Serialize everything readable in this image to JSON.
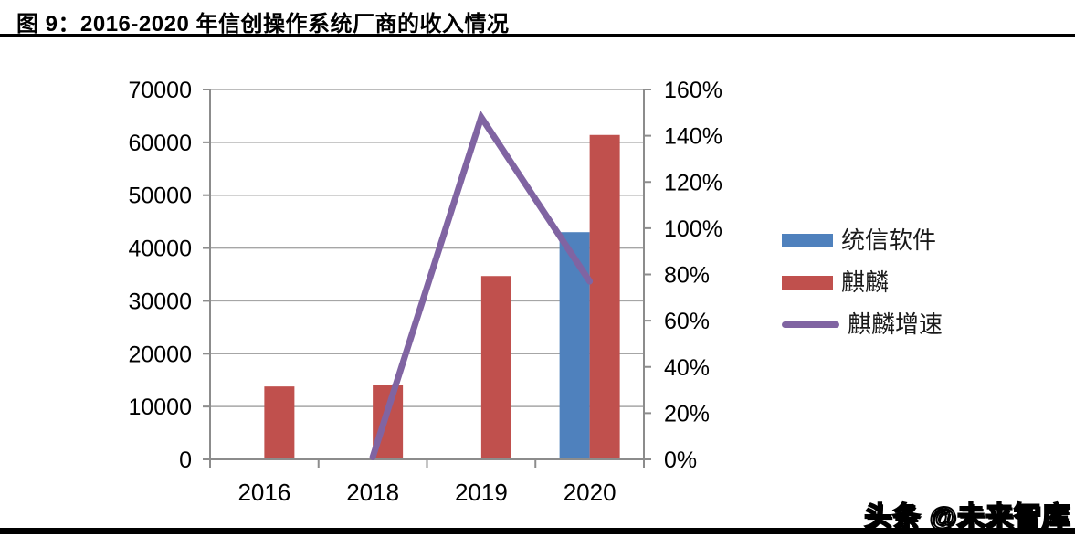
{
  "title": "图 9：2016-2020 年信创操作系统厂商的收入情况",
  "watermark": "头条 @未来智库",
  "colors": {
    "uos_blue": "#4F81BD",
    "kylin_red": "#C0504D",
    "growth_purple": "#8064A2",
    "gridline": "#A6A6A6",
    "axis": "#8C8C8C",
    "text": "#000000"
  },
  "legend": {
    "items": [
      {
        "label": "统信软件",
        "type": "bar",
        "color": "#4F81BD"
      },
      {
        "label": "麒麟",
        "type": "bar",
        "color": "#C0504D"
      },
      {
        "label": "麒麟增速",
        "type": "line",
        "color": "#8064A2"
      }
    ]
  },
  "chart_data": {
    "type": "bar",
    "title": "图 9：2016-2020 年信创操作系统厂商的收入情况",
    "categories": [
      "2016",
      "2018",
      "2019",
      "2020"
    ],
    "series": [
      {
        "name": "统信软件",
        "type": "bar",
        "axis": "left",
        "color": "#4F81BD",
        "values": [
          null,
          null,
          null,
          43000
        ]
      },
      {
        "name": "麒麟",
        "type": "bar",
        "axis": "left",
        "color": "#C0504D",
        "values": [
          13800,
          14000,
          34700,
          61400
        ]
      },
      {
        "name": "麒麟增速",
        "type": "line",
        "axis": "right",
        "color": "#8064A2",
        "values": [
          null,
          1,
          148,
          77
        ]
      }
    ],
    "left_axis": {
      "min": 0,
      "max": 70000,
      "tick_labels": [
        "0",
        "10000",
        "20000",
        "30000",
        "40000",
        "50000",
        "60000",
        "70000"
      ]
    },
    "right_axis": {
      "min": 0,
      "max": 160,
      "tick_labels": [
        "0%",
        "20%",
        "40%",
        "60%",
        "80%",
        "100%",
        "120%",
        "140%",
        "160%"
      ]
    },
    "grid": true,
    "legend_position": "right"
  }
}
